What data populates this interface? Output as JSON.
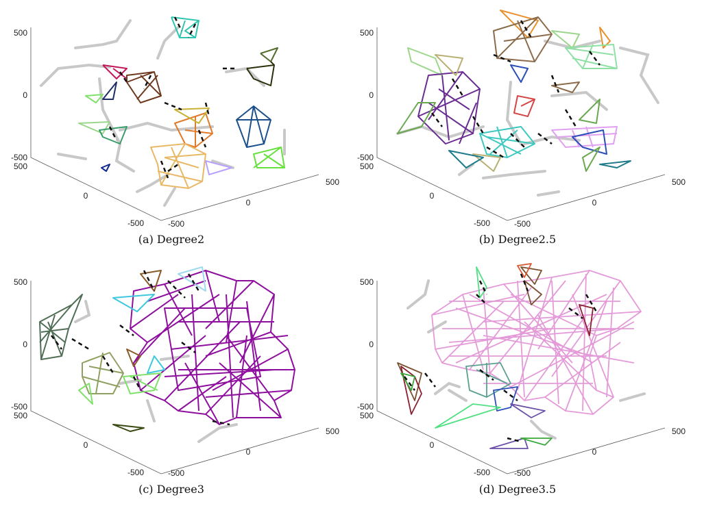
{
  "figure": {
    "panels": [
      {
        "id": "a",
        "caption": "(a)  Degree2",
        "ticks": {
          "z": [
            "500",
            "0",
            "-500"
          ],
          "y": [
            "500",
            "0",
            "-500"
          ],
          "x": [
            "-500",
            "0",
            "500"
          ]
        },
        "clusters": [
          {
            "color": "#2ec4b0"
          },
          {
            "color": "#556b2f"
          },
          {
            "color": "#2a2f0a"
          },
          {
            "color": "#c2185b"
          },
          {
            "color": "#6d3a1f"
          },
          {
            "color": "#7fe06a"
          },
          {
            "color": "#1f2d66"
          },
          {
            "color": "#9bd68a"
          },
          {
            "color": "#3a9d6a"
          },
          {
            "color": "#e07b2a"
          },
          {
            "color": "#c9b233"
          },
          {
            "color": "#1b4f8c"
          },
          {
            "color": "#e8b865"
          },
          {
            "color": "#66e03a"
          },
          {
            "color": "#b8a0ff"
          },
          {
            "color": "#0f2a8c"
          }
        ]
      },
      {
        "id": "b",
        "caption": "(b)  Degree2.5",
        "ticks": {
          "z": [
            "500",
            "0",
            "-500"
          ],
          "y": [
            "500",
            "0",
            "-500"
          ],
          "x": [
            "-500",
            "0",
            "500"
          ]
        },
        "clusters": [
          {
            "color": "#e8902a"
          },
          {
            "color": "#9bd68a"
          },
          {
            "color": "#8b6b4a"
          },
          {
            "color": "#8fe0a5"
          },
          {
            "color": "#6a2c91"
          },
          {
            "color": "#3ec8c0"
          },
          {
            "color": "#e0a0f0"
          },
          {
            "color": "#d64545"
          },
          {
            "color": "#2a4db8"
          },
          {
            "color": "#6aa84f"
          },
          {
            "color": "#b8b070"
          },
          {
            "color": "#1f7a8c"
          }
        ]
      },
      {
        "id": "c",
        "caption": "(c)  Degree3",
        "ticks": {
          "z": [
            "500",
            "0",
            "-500"
          ],
          "y": [
            "500",
            "0",
            "-500"
          ],
          "x": [
            "-500",
            "0",
            "500"
          ]
        },
        "clusters": [
          {
            "color": "#8e0f9e"
          },
          {
            "color": "#4f6e55"
          },
          {
            "color": "#8fa060"
          },
          {
            "color": "#8a5a2a"
          },
          {
            "color": "#7fe06a"
          },
          {
            "color": "#3ec8e0"
          },
          {
            "color": "#3a4a12"
          },
          {
            "color": "#a0d8f0"
          }
        ]
      },
      {
        "id": "d",
        "caption": "(d)  Degree3.5",
        "ticks": {
          "z": [
            "500",
            "0",
            "-500"
          ],
          "y": [
            "500",
            "0",
            "-500"
          ],
          "x": [
            "-500",
            "0",
            "500"
          ]
        },
        "clusters": [
          {
            "color": "#e49ad8"
          },
          {
            "color": "#7a5030"
          },
          {
            "color": "#5aa090"
          },
          {
            "color": "#2a4db8"
          },
          {
            "color": "#4fe080"
          },
          {
            "color": "#8a2030"
          },
          {
            "color": "#6a50a8"
          },
          {
            "color": "#d85a30"
          },
          {
            "color": "#3aa83a"
          }
        ]
      }
    ]
  }
}
